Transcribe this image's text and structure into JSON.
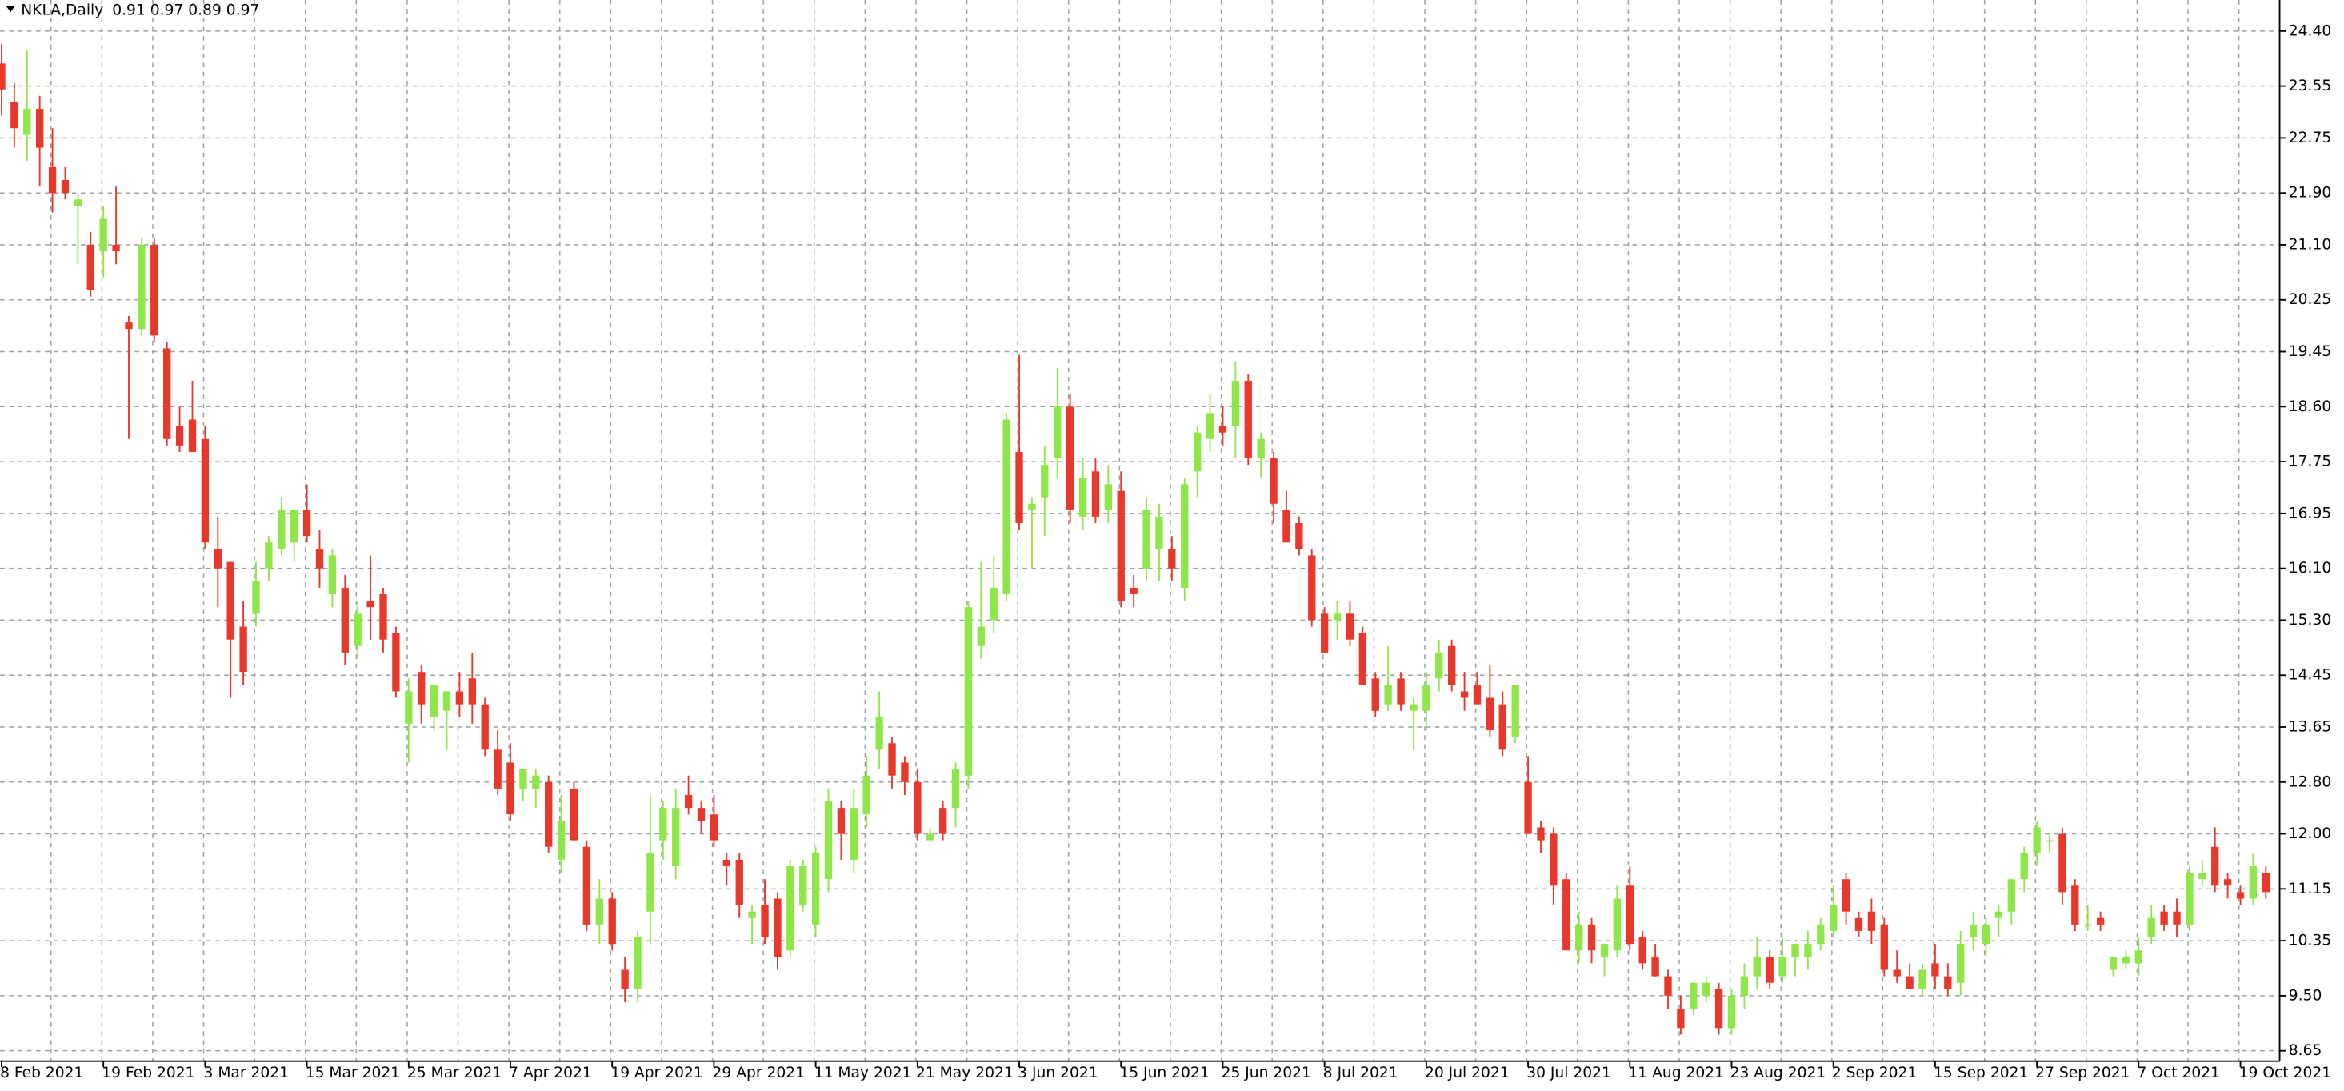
{
  "chart_data": {
    "type": "candlestick",
    "symbol": "NKLA,Daily",
    "ohlc_header": "0.91 0.97 0.89 0.97",
    "up_color": "#8fe648",
    "down_color": "#e8382c",
    "grid": true,
    "ylim": [
      8.49,
      24.88
    ],
    "yticks": [
      {
        "value": 24.4,
        "label": "24.40"
      },
      {
        "value": 23.55,
        "label": "23.55"
      },
      {
        "value": 22.75,
        "label": "22.75"
      },
      {
        "value": 21.9,
        "label": "21.90"
      },
      {
        "value": 21.1,
        "label": "21.10"
      },
      {
        "value": 20.25,
        "label": "20.25"
      },
      {
        "value": 19.45,
        "label": "19.45"
      },
      {
        "value": 18.6,
        "label": "18.60"
      },
      {
        "value": 17.75,
        "label": "17.75"
      },
      {
        "value": 16.95,
        "label": "16.95"
      },
      {
        "value": 16.1,
        "label": "16.10"
      },
      {
        "value": 15.3,
        "label": "15.30"
      },
      {
        "value": 14.45,
        "label": "14.45"
      },
      {
        "value": 13.65,
        "label": "13.65"
      },
      {
        "value": 12.8,
        "label": "12.80"
      },
      {
        "value": 12.0,
        "label": "12.00"
      },
      {
        "value": 11.15,
        "label": "11.15"
      },
      {
        "value": 10.35,
        "label": "10.35"
      },
      {
        "value": 9.5,
        "label": "9.50"
      },
      {
        "value": 8.65,
        "label": "8.65"
      }
    ],
    "categories": [
      "8 Feb 2021",
      null,
      null,
      null,
      null,
      null,
      null,
      null,
      "19 Feb 2021",
      null,
      null,
      null,
      null,
      null,
      null,
      null,
      "3 Mar 2021",
      null,
      null,
      null,
      null,
      null,
      null,
      null,
      "15 Mar 2021",
      null,
      null,
      null,
      null,
      null,
      null,
      null,
      "25 Mar 2021",
      null,
      null,
      null,
      null,
      null,
      null,
      null,
      "7 Apr 2021",
      null,
      null,
      null,
      null,
      null,
      null,
      null,
      "19 Apr 2021",
      null,
      null,
      null,
      null,
      null,
      null,
      null,
      "29 Apr 2021",
      null,
      null,
      null,
      null,
      null,
      null,
      null,
      "11 May 2021",
      null,
      null,
      null,
      null,
      null,
      null,
      null,
      "21 May 2021",
      null,
      null,
      null,
      null,
      null,
      null,
      null,
      "3 Jun 2021",
      null,
      null,
      null,
      null,
      null,
      null,
      null,
      "15 Jun 2021",
      null,
      null,
      null,
      null,
      null,
      null,
      null,
      "25 Jun 2021",
      null,
      null,
      null,
      null,
      null,
      null,
      null,
      "8 Jul 2021",
      null,
      null,
      null,
      null,
      null,
      null,
      null,
      "20 Jul 2021",
      null,
      null,
      null,
      null,
      null,
      null,
      null,
      "30 Jul 2021",
      null,
      null,
      null,
      null,
      null,
      null,
      null,
      "11 Aug 2021",
      null,
      null,
      null,
      null,
      null,
      null,
      null,
      "23 Aug 2021",
      null,
      null,
      null,
      null,
      null,
      null,
      null,
      "2 Sep 2021",
      null,
      null,
      null,
      null,
      null,
      null,
      null,
      "15 Sep 2021",
      null,
      null,
      null,
      null,
      null,
      null,
      null,
      "27 Sep 2021",
      null,
      null,
      null,
      null,
      null,
      null,
      null,
      "7 Oct 2021",
      null,
      null,
      null,
      null,
      null,
      null,
      null,
      "19 Oct 2021",
      null,
      null
    ],
    "candles": [
      [
        23.9,
        24.2,
        23.1,
        23.5
      ],
      [
        23.3,
        23.6,
        22.6,
        22.9
      ],
      [
        22.8,
        24.1,
        22.4,
        23.2
      ],
      [
        23.2,
        23.4,
        22.0,
        22.6
      ],
      [
        22.3,
        22.9,
        21.6,
        21.9
      ],
      [
        22.1,
        22.3,
        21.8,
        21.9
      ],
      [
        21.7,
        21.9,
        20.8,
        21.8
      ],
      [
        21.1,
        21.3,
        20.3,
        20.4
      ],
      [
        21.0,
        21.7,
        20.6,
        21.5
      ],
      [
        21.1,
        22.0,
        20.8,
        21.0
      ],
      [
        19.9,
        20.0,
        18.1,
        19.8
      ],
      [
        19.8,
        21.2,
        19.7,
        21.1
      ],
      [
        21.1,
        21.2,
        19.6,
        19.7
      ],
      [
        19.5,
        19.6,
        18.0,
        18.1
      ],
      [
        18.3,
        18.6,
        17.9,
        18.0
      ],
      [
        18.4,
        19.0,
        17.9,
        17.9
      ],
      [
        18.1,
        18.3,
        16.4,
        16.5
      ],
      [
        16.4,
        16.9,
        15.5,
        16.1
      ],
      [
        16.2,
        16.2,
        14.1,
        15.0
      ],
      [
        15.2,
        15.6,
        14.3,
        14.5
      ],
      [
        15.4,
        16.2,
        15.2,
        15.9
      ],
      [
        16.1,
        16.6,
        15.9,
        16.5
      ],
      [
        16.4,
        17.2,
        16.3,
        17.0
      ],
      [
        16.5,
        17.0,
        16.2,
        17.0
      ],
      [
        17.0,
        17.4,
        16.5,
        16.6
      ],
      [
        16.4,
        16.7,
        15.8,
        16.1
      ],
      [
        15.7,
        16.4,
        15.5,
        16.3
      ],
      [
        15.8,
        16.0,
        14.6,
        14.8
      ],
      [
        14.9,
        15.6,
        14.7,
        15.4
      ],
      [
        15.6,
        16.3,
        15.0,
        15.5
      ],
      [
        15.7,
        15.8,
        14.8,
        15.0
      ],
      [
        15.1,
        15.2,
        14.1,
        14.2
      ],
      [
        13.7,
        14.4,
        13.1,
        14.2
      ],
      [
        14.5,
        14.6,
        13.7,
        14.0
      ],
      [
        13.8,
        14.3,
        13.6,
        14.3
      ],
      [
        13.9,
        14.2,
        13.3,
        14.2
      ],
      [
        14.2,
        14.5,
        13.8,
        14.0
      ],
      [
        14.4,
        14.8,
        13.7,
        14.0
      ],
      [
        14.0,
        14.1,
        13.2,
        13.3
      ],
      [
        13.3,
        13.6,
        12.6,
        12.7
      ],
      [
        13.1,
        13.4,
        12.2,
        12.3
      ],
      [
        12.7,
        13.0,
        12.5,
        13.0
      ],
      [
        12.7,
        13.0,
        12.4,
        12.9
      ],
      [
        12.8,
        12.9,
        11.7,
        11.8
      ],
      [
        11.6,
        12.6,
        11.4,
        12.2
      ],
      [
        12.7,
        12.8,
        11.9,
        11.9
      ],
      [
        11.8,
        11.9,
        10.5,
        10.6
      ],
      [
        10.6,
        11.3,
        10.3,
        11.0
      ],
      [
        11.0,
        11.1,
        10.2,
        10.3
      ],
      [
        9.9,
        10.1,
        9.4,
        9.6
      ],
      [
        9.6,
        10.5,
        9.4,
        10.4
      ],
      [
        10.8,
        12.6,
        10.3,
        11.7
      ],
      [
        11.9,
        12.5,
        11.6,
        12.4
      ],
      [
        11.5,
        12.7,
        11.3,
        12.4
      ],
      [
        12.6,
        12.9,
        12.3,
        12.4
      ],
      [
        12.4,
        12.5,
        12.0,
        12.2
      ],
      [
        12.3,
        12.6,
        11.8,
        11.9
      ],
      [
        11.6,
        11.7,
        11.2,
        11.5
      ],
      [
        11.6,
        11.7,
        10.7,
        10.9
      ],
      [
        10.7,
        10.9,
        10.3,
        10.8
      ],
      [
        10.9,
        11.3,
        10.3,
        10.4
      ],
      [
        11.0,
        11.1,
        9.9,
        10.1
      ],
      [
        10.2,
        11.6,
        10.1,
        11.5
      ],
      [
        10.9,
        11.6,
        10.8,
        11.5
      ],
      [
        10.6,
        11.8,
        10.4,
        11.7
      ],
      [
        11.3,
        12.7,
        11.1,
        12.5
      ],
      [
        12.4,
        12.5,
        11.6,
        12.0
      ],
      [
        11.6,
        12.7,
        11.4,
        12.4
      ],
      [
        12.3,
        13.2,
        12.1,
        12.9
      ],
      [
        13.3,
        14.2,
        13.0,
        13.8
      ],
      [
        13.4,
        13.5,
        12.7,
        12.9
      ],
      [
        13.1,
        13.2,
        12.6,
        12.8
      ],
      [
        12.8,
        13.0,
        11.9,
        12.0
      ],
      [
        11.9,
        12.1,
        11.9,
        12.0
      ],
      [
        12.4,
        12.5,
        11.9,
        12.0
      ],
      [
        12.4,
        13.1,
        12.1,
        13.0
      ],
      [
        12.9,
        15.6,
        12.7,
        15.5
      ],
      [
        14.9,
        16.2,
        14.7,
        15.2
      ],
      [
        15.3,
        16.3,
        15.1,
        15.8
      ],
      [
        15.7,
        18.5,
        15.6,
        18.4
      ],
      [
        17.9,
        19.4,
        16.7,
        16.8
      ],
      [
        17.0,
        17.2,
        16.1,
        17.1
      ],
      [
        17.2,
        18.0,
        16.6,
        17.7
      ],
      [
        17.8,
        19.2,
        17.5,
        18.6
      ],
      [
        18.6,
        18.8,
        16.8,
        17.0
      ],
      [
        16.9,
        17.8,
        16.7,
        17.5
      ],
      [
        17.6,
        17.8,
        16.8,
        16.9
      ],
      [
        17.0,
        17.7,
        16.8,
        17.4
      ],
      [
        17.3,
        17.6,
        15.5,
        15.6
      ],
      [
        15.8,
        16.0,
        15.5,
        15.7
      ],
      [
        16.1,
        17.2,
        15.9,
        17.0
      ],
      [
        16.4,
        17.1,
        15.9,
        16.9
      ],
      [
        16.4,
        16.6,
        15.9,
        16.1
      ],
      [
        15.8,
        17.5,
        15.6,
        17.4
      ],
      [
        17.6,
        18.3,
        17.2,
        18.2
      ],
      [
        18.1,
        18.8,
        17.9,
        18.5
      ],
      [
        18.3,
        18.6,
        18.0,
        18.2
      ],
      [
        18.3,
        19.3,
        17.8,
        19.0
      ],
      [
        19.0,
        19.1,
        17.7,
        17.8
      ],
      [
        17.8,
        18.2,
        17.5,
        18.1
      ],
      [
        17.8,
        17.9,
        16.8,
        17.1
      ],
      [
        17.0,
        17.3,
        16.5,
        16.5
      ],
      [
        16.8,
        16.9,
        16.3,
        16.4
      ],
      [
        16.3,
        16.4,
        15.2,
        15.3
      ],
      [
        15.4,
        15.5,
        14.8,
        14.8
      ],
      [
        15.3,
        15.6,
        15.0,
        15.4
      ],
      [
        15.4,
        15.6,
        14.9,
        15.0
      ],
      [
        15.1,
        15.2,
        14.3,
        14.3
      ],
      [
        14.4,
        14.5,
        13.8,
        13.9
      ],
      [
        14.0,
        14.9,
        13.9,
        14.3
      ],
      [
        14.4,
        14.5,
        13.9,
        14.0
      ],
      [
        13.9,
        14.1,
        13.3,
        14.0
      ],
      [
        13.9,
        14.5,
        13.6,
        14.3
      ],
      [
        14.4,
        15.0,
        14.2,
        14.8
      ],
      [
        14.9,
        15.0,
        14.2,
        14.3
      ],
      [
        14.2,
        14.5,
        13.9,
        14.1
      ],
      [
        14.3,
        14.5,
        14.0,
        14.0
      ],
      [
        14.1,
        14.6,
        13.5,
        13.6
      ],
      [
        14.0,
        14.2,
        13.2,
        13.3
      ],
      [
        13.5,
        14.3,
        13.4,
        14.3
      ],
      [
        12.8,
        13.2,
        12.0,
        12.0
      ],
      [
        12.1,
        12.2,
        11.7,
        11.9
      ],
      [
        12.0,
        12.1,
        10.9,
        11.2
      ],
      [
        11.3,
        11.4,
        10.2,
        10.2
      ],
      [
        10.2,
        10.8,
        10.0,
        10.6
      ],
      [
        10.6,
        10.7,
        10.0,
        10.2
      ],
      [
        10.1,
        10.3,
        9.8,
        10.3
      ],
      [
        10.2,
        11.2,
        10.1,
        11.0
      ],
      [
        11.2,
        11.5,
        10.2,
        10.3
      ],
      [
        10.4,
        10.5,
        9.9,
        10.0
      ],
      [
        10.1,
        10.3,
        9.8,
        9.8
      ],
      [
        9.8,
        9.9,
        9.3,
        9.5
      ],
      [
        9.3,
        9.5,
        8.9,
        9.0
      ],
      [
        9.3,
        9.7,
        9.2,
        9.7
      ],
      [
        9.5,
        9.8,
        9.4,
        9.7
      ],
      [
        9.6,
        9.7,
        8.9,
        9.0
      ],
      [
        9.0,
        9.6,
        8.9,
        9.5
      ],
      [
        9.5,
        10.0,
        9.3,
        9.8
      ],
      [
        9.8,
        10.4,
        9.6,
        10.1
      ],
      [
        10.1,
        10.2,
        9.6,
        9.7
      ],
      [
        9.8,
        10.4,
        9.7,
        10.1
      ],
      [
        10.1,
        10.3,
        9.8,
        10.3
      ],
      [
        10.1,
        10.5,
        9.9,
        10.3
      ],
      [
        10.3,
        10.7,
        10.2,
        10.6
      ],
      [
        10.5,
        11.2,
        10.4,
        10.9
      ],
      [
        11.3,
        11.4,
        10.6,
        10.8
      ],
      [
        10.7,
        10.8,
        10.4,
        10.5
      ],
      [
        10.8,
        11.0,
        10.3,
        10.5
      ],
      [
        10.6,
        10.7,
        9.8,
        9.9
      ],
      [
        9.9,
        10.2,
        9.7,
        9.8
      ],
      [
        9.8,
        10.0,
        9.6,
        9.6
      ],
      [
        9.6,
        10.0,
        9.5,
        9.9
      ],
      [
        10.0,
        10.3,
        9.6,
        9.8
      ],
      [
        9.8,
        10.0,
        9.5,
        9.6
      ],
      [
        9.7,
        10.5,
        9.5,
        10.3
      ],
      [
        10.4,
        10.8,
        10.2,
        10.6
      ],
      [
        10.3,
        10.7,
        10.1,
        10.6
      ],
      [
        10.7,
        10.9,
        10.4,
        10.8
      ],
      [
        10.8,
        11.3,
        10.6,
        11.3
      ],
      [
        11.3,
        11.8,
        11.1,
        11.7
      ],
      [
        11.7,
        12.2,
        11.5,
        12.1
      ],
      [
        11.9,
        12.0,
        11.7,
        11.9
      ],
      [
        12.0,
        12.1,
        10.9,
        11.1
      ],
      [
        11.2,
        11.3,
        10.5,
        10.6
      ],
      [
        10.6,
        10.9,
        10.5,
        10.6
      ],
      [
        10.7,
        10.8,
        10.5,
        10.6
      ],
      [
        9.9,
        10.1,
        9.8,
        10.1
      ],
      [
        10.0,
        10.2,
        9.9,
        10.1
      ],
      [
        10.0,
        10.4,
        9.8,
        10.2
      ],
      [
        10.4,
        10.9,
        10.3,
        10.7
      ],
      [
        10.8,
        10.9,
        10.5,
        10.6
      ],
      [
        10.8,
        11.0,
        10.4,
        10.6
      ],
      [
        10.6,
        11.5,
        10.5,
        11.4
      ],
      [
        11.3,
        11.6,
        11.2,
        11.4
      ],
      [
        11.8,
        12.1,
        11.1,
        11.2
      ],
      [
        11.3,
        11.4,
        11.0,
        11.2
      ],
      [
        11.1,
        11.2,
        10.9,
        11.0
      ],
      [
        11.0,
        11.7,
        10.9,
        11.5
      ],
      [
        11.4,
        11.5,
        11.0,
        11.1
      ]
    ]
  }
}
